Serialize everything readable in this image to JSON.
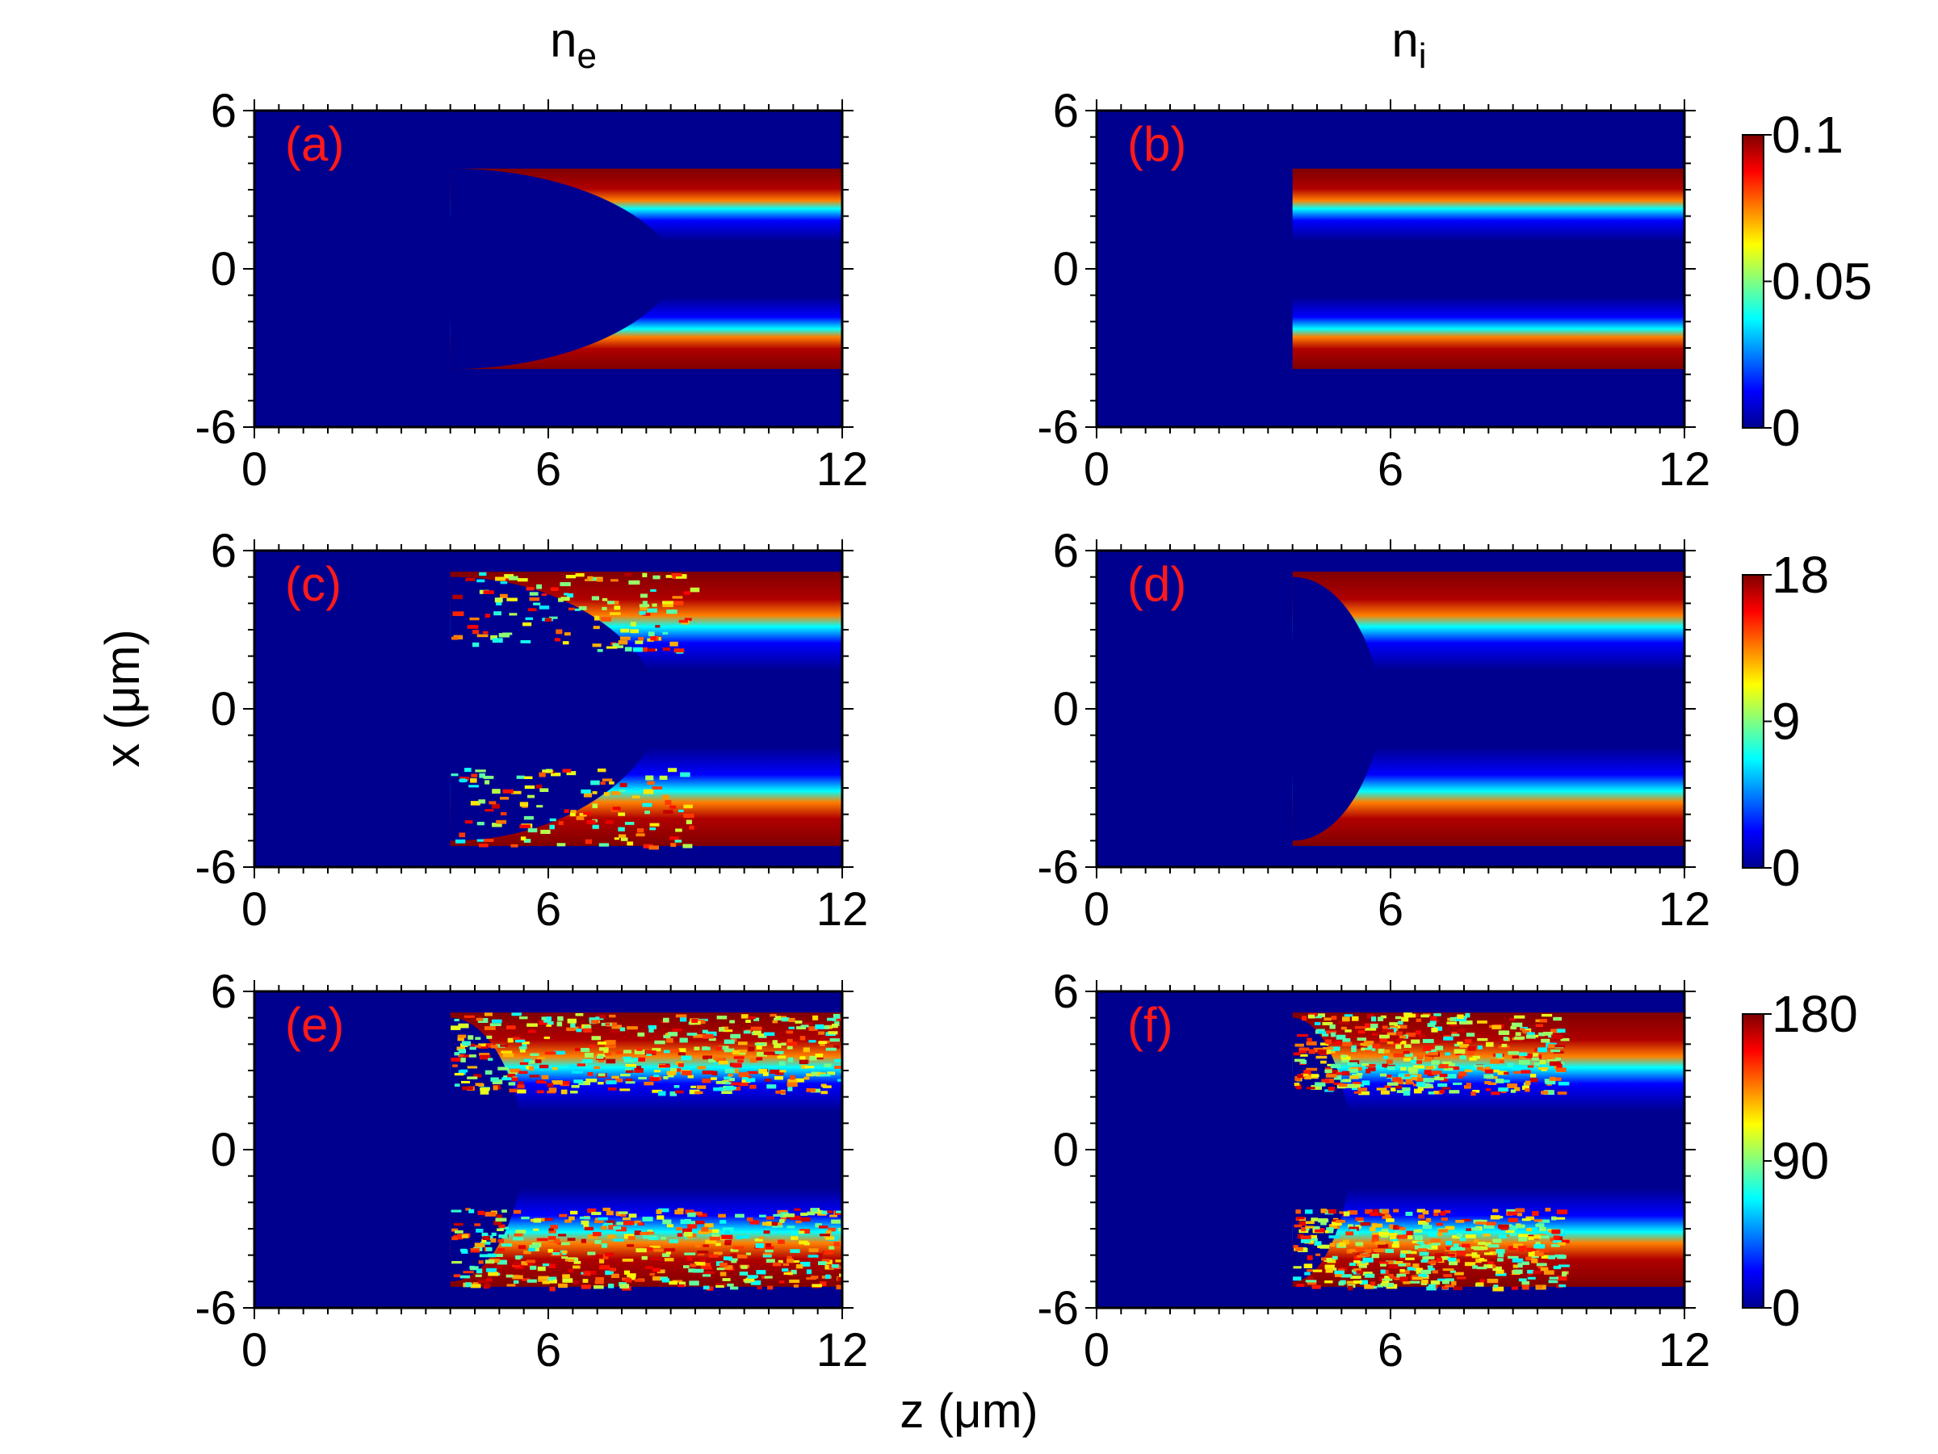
{
  "chart_data": {
    "type": "heatmap",
    "column_titles": [
      {
        "base": "n",
        "sub": "e"
      },
      {
        "base": "n",
        "sub": "i"
      }
    ],
    "xlabel": "z (μm)",
    "ylabel": "x (μm)",
    "xlim": [
      0,
      12
    ],
    "ylim": [
      -6,
      6
    ],
    "xticks": [
      "0",
      "6",
      "12"
    ],
    "yticks": [
      "6",
      "0",
      "-6"
    ],
    "colormap": "jet",
    "rows": [
      {
        "colorbar": {
          "min": 0,
          "max": 0.1,
          "tick_labels": [
            "0.1",
            "0.05",
            "0"
          ]
        },
        "panels": [
          {
            "label": "(a)",
            "quantity": "n_e",
            "front_z": 4.0,
            "cavity_tip_z": 8.6,
            "channel_halfwidth": 3.8
          },
          {
            "label": "(b)",
            "quantity": "n_i",
            "front_z": 4.0,
            "cavity_tip_z": 4.0,
            "channel_halfwidth": 3.8
          }
        ]
      },
      {
        "colorbar": {
          "min": 0,
          "max": 18,
          "tick_labels": [
            "18",
            "9",
            "0"
          ]
        },
        "panels": [
          {
            "label": "(c)",
            "quantity": "n_e",
            "front_z": 4.0,
            "cavity_tip_z": 8.3,
            "channel_halfwidth": 5.2
          },
          {
            "label": "(d)",
            "quantity": "n_i",
            "front_z": 4.0,
            "cavity_tip_z": 5.8,
            "channel_halfwidth": 5.2
          }
        ]
      },
      {
        "colorbar": {
          "min": 0,
          "max": 180,
          "tick_labels": [
            "180",
            "90",
            "0"
          ]
        },
        "panels": [
          {
            "label": "(e)",
            "quantity": "n_e",
            "front_z": 4.0,
            "cavity_tip_z": 5.5,
            "channel_halfwidth": 5.2
          },
          {
            "label": "(f)",
            "quantity": "n_i",
            "front_z": 4.0,
            "cavity_tip_z": 5.2,
            "channel_halfwidth": 5.2
          }
        ]
      }
    ]
  }
}
